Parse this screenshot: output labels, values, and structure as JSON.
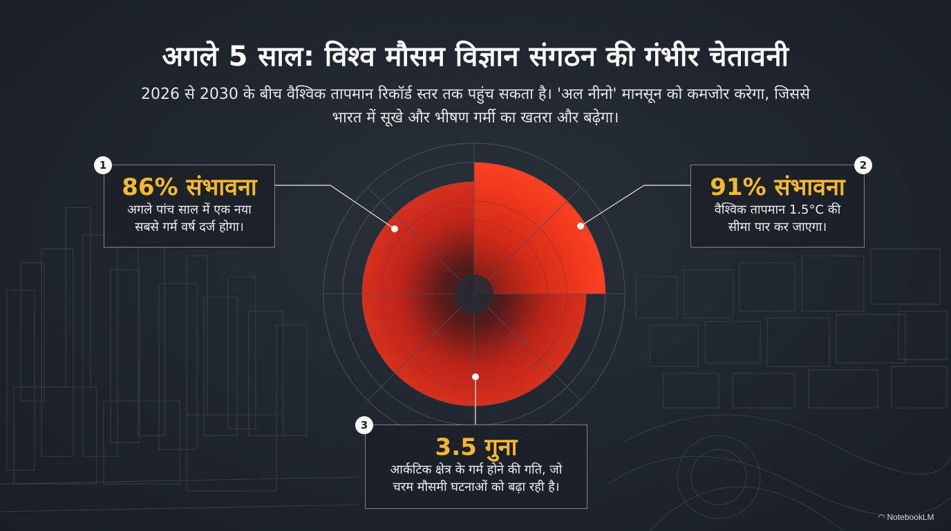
{
  "title": "अगले 5 साल: विश्व मौसम विज्ञान संगठन की गंभीर चेतावनी",
  "subtitle": "2026 से 2030 के बीच वैश्विक तापमान रिकॉर्ड स्तर तक पहुंच सकता है। 'अल नीनो' मानसून को कमजोर करेगा, जिससे भारत में सूखे और भीषण गर्मी का खतरा और बढ़ेगा।",
  "callouts": [
    {
      "number": "1",
      "value": "86% संभावना",
      "desc_line1": "अगले पांच साल में एक नया",
      "desc_line2": "सबसे गर्म वर्ष दर्ज होगा।"
    },
    {
      "number": "2",
      "value": "91% संभावना",
      "desc_line1": "वैश्विक तापमान 1.5°C की",
      "desc_line2": "सीमा पार कर जाएगा।"
    },
    {
      "number": "3",
      "value": "3.5 गुना",
      "desc_line1": "आर्कटिक क्षेत्र के गर्म होने की गति, जो",
      "desc_line2": "चरम मौसमी घटनाओं को बढ़ा रही है।"
    }
  ],
  "brand": "NotebookLM",
  "colors": {
    "accent_yellow": "#f5b82e",
    "red_main": "#d92b1c",
    "red_bright": "#ff3a1e",
    "background": "#1f252d"
  }
}
